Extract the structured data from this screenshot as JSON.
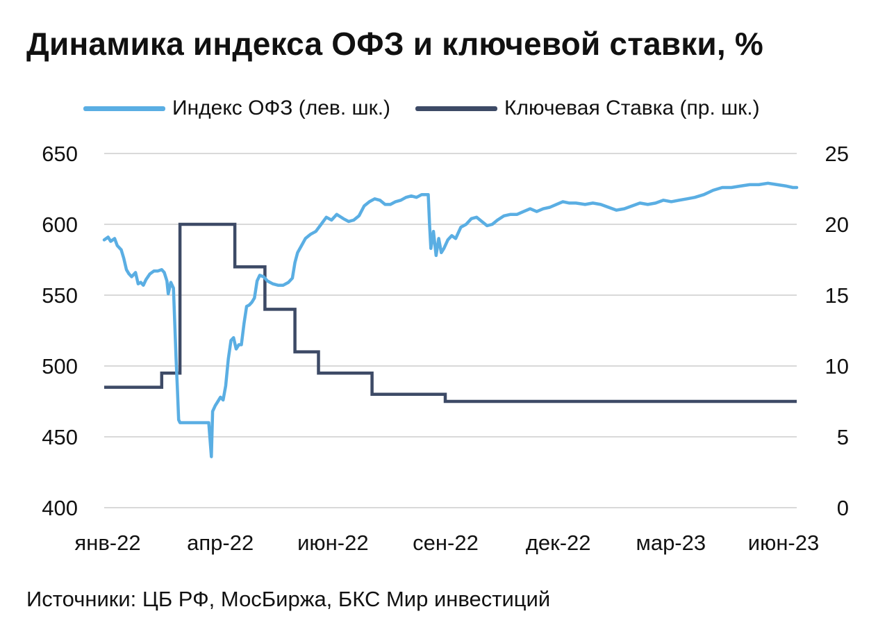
{
  "title": "Динамика индекса ОФЗ и ключевой ставки, %",
  "source": "Источники: ЦБ РФ, МосБиржа, БКС Мир инвестиций",
  "colors": {
    "ofz_index": "#5aaee3",
    "key_rate": "#3d4a66",
    "grid": "#d9d9d9",
    "text": "#111111"
  },
  "chart_data": {
    "type": "line",
    "title": "Динамика индекса ОФЗ и ключевой ставки, %",
    "x_ticks": [
      "янв-22",
      "апр-22",
      "июн-22",
      "сен-22",
      "дек-22",
      "мар-23",
      "июн-23"
    ],
    "x_range": [
      "2022-01-01",
      "2023-06-15"
    ],
    "y_left": {
      "ticks": [
        400,
        450,
        500,
        550,
        600,
        650
      ],
      "range": [
        400,
        650
      ]
    },
    "y_right": {
      "ticks": [
        0,
        5,
        10,
        15,
        20,
        25
      ],
      "range": [
        0,
        25
      ]
    },
    "grid": "horizontal",
    "legend_position": "top",
    "series": [
      {
        "name": "Индекс ОФЗ (лев. шк.)",
        "axis": "left",
        "color": "#5aaee3",
        "points": [
          [
            "2022-01-01",
            589
          ],
          [
            "2022-01-04",
            591
          ],
          [
            "2022-01-06",
            588
          ],
          [
            "2022-01-09",
            590
          ],
          [
            "2022-01-11",
            585
          ],
          [
            "2022-01-14",
            582
          ],
          [
            "2022-01-16",
            576
          ],
          [
            "2022-01-18",
            568
          ],
          [
            "2022-01-20",
            565
          ],
          [
            "2022-01-22",
            563
          ],
          [
            "2022-01-25",
            566
          ],
          [
            "2022-01-27",
            558
          ],
          [
            "2022-01-29",
            559
          ],
          [
            "2022-01-31",
            557
          ],
          [
            "2022-02-02",
            561
          ],
          [
            "2022-02-05",
            565
          ],
          [
            "2022-02-08",
            567
          ],
          [
            "2022-02-11",
            567
          ],
          [
            "2022-02-14",
            568
          ],
          [
            "2022-02-16",
            566
          ],
          [
            "2022-02-18",
            560
          ],
          [
            "2022-02-19",
            551
          ],
          [
            "2022-02-21",
            559
          ],
          [
            "2022-02-23",
            555
          ],
          [
            "2022-02-24",
            530
          ],
          [
            "2022-02-25",
            505
          ],
          [
            "2022-02-26",
            485
          ],
          [
            "2022-02-27",
            462
          ],
          [
            "2022-02-28",
            460
          ],
          [
            "2022-03-22",
            460
          ],
          [
            "2022-03-23",
            448
          ],
          [
            "2022-03-24",
            436
          ],
          [
            "2022-03-25",
            468
          ],
          [
            "2022-03-27",
            472
          ],
          [
            "2022-03-29",
            475
          ],
          [
            "2022-03-31",
            478
          ],
          [
            "2022-04-02",
            476
          ],
          [
            "2022-04-04",
            486
          ],
          [
            "2022-04-06",
            505
          ],
          [
            "2022-04-08",
            518
          ],
          [
            "2022-04-10",
            520
          ],
          [
            "2022-04-12",
            512
          ],
          [
            "2022-04-14",
            515
          ],
          [
            "2022-04-16",
            515
          ],
          [
            "2022-04-18",
            530
          ],
          [
            "2022-04-20",
            542
          ],
          [
            "2022-04-22",
            543
          ],
          [
            "2022-04-24",
            545
          ],
          [
            "2022-04-26",
            548
          ],
          [
            "2022-04-28",
            560
          ],
          [
            "2022-04-30",
            564
          ],
          [
            "2022-05-03",
            563
          ],
          [
            "2022-05-06",
            560
          ],
          [
            "2022-05-10",
            558
          ],
          [
            "2022-05-14",
            557
          ],
          [
            "2022-05-18",
            557
          ],
          [
            "2022-05-22",
            559
          ],
          [
            "2022-05-25",
            562
          ],
          [
            "2022-05-27",
            573
          ],
          [
            "2022-05-29",
            580
          ],
          [
            "2022-06-01",
            585
          ],
          [
            "2022-06-04",
            590
          ],
          [
            "2022-06-08",
            593
          ],
          [
            "2022-06-12",
            595
          ],
          [
            "2022-06-16",
            600
          ],
          [
            "2022-06-20",
            605
          ],
          [
            "2022-06-24",
            603
          ],
          [
            "2022-06-28",
            607
          ],
          [
            "2022-07-03",
            604
          ],
          [
            "2022-07-07",
            602
          ],
          [
            "2022-07-11",
            603
          ],
          [
            "2022-07-15",
            606
          ],
          [
            "2022-07-19",
            613
          ],
          [
            "2022-07-23",
            616
          ],
          [
            "2022-07-27",
            618
          ],
          [
            "2022-07-31",
            617
          ],
          [
            "2022-08-04",
            614
          ],
          [
            "2022-08-08",
            614
          ],
          [
            "2022-08-12",
            616
          ],
          [
            "2022-08-16",
            617
          ],
          [
            "2022-08-20",
            619
          ],
          [
            "2022-08-24",
            620
          ],
          [
            "2022-08-28",
            619
          ],
          [
            "2022-09-01",
            621
          ],
          [
            "2022-09-04",
            621
          ],
          [
            "2022-09-06",
            621
          ],
          [
            "2022-09-07",
            600
          ],
          [
            "2022-09-08",
            583
          ],
          [
            "2022-09-10",
            595
          ],
          [
            "2022-09-12",
            578
          ],
          [
            "2022-09-14",
            590
          ],
          [
            "2022-09-16",
            580
          ],
          [
            "2022-09-18",
            583
          ],
          [
            "2022-09-21",
            589
          ],
          [
            "2022-09-24",
            592
          ],
          [
            "2022-09-27",
            590
          ],
          [
            "2022-10-01",
            598
          ],
          [
            "2022-10-05",
            600
          ],
          [
            "2022-10-09",
            604
          ],
          [
            "2022-10-13",
            605
          ],
          [
            "2022-10-17",
            602
          ],
          [
            "2022-10-21",
            599
          ],
          [
            "2022-10-25",
            600
          ],
          [
            "2022-10-29",
            603
          ],
          [
            "2022-11-03",
            606
          ],
          [
            "2022-11-08",
            607
          ],
          [
            "2022-11-13",
            607
          ],
          [
            "2022-11-18",
            609
          ],
          [
            "2022-11-23",
            611
          ],
          [
            "2022-11-28",
            609
          ],
          [
            "2022-12-03",
            611
          ],
          [
            "2022-12-08",
            612
          ],
          [
            "2022-12-13",
            614
          ],
          [
            "2022-12-18",
            616
          ],
          [
            "2022-12-23",
            615
          ],
          [
            "2022-12-28",
            615
          ],
          [
            "2023-01-04",
            614
          ],
          [
            "2023-01-10",
            615
          ],
          [
            "2023-01-16",
            614
          ],
          [
            "2023-01-22",
            612
          ],
          [
            "2023-01-28",
            610
          ],
          [
            "2023-02-03",
            611
          ],
          [
            "2023-02-09",
            613
          ],
          [
            "2023-02-15",
            615
          ],
          [
            "2023-02-21",
            614
          ],
          [
            "2023-02-27",
            615
          ],
          [
            "2023-03-05",
            617
          ],
          [
            "2023-03-11",
            616
          ],
          [
            "2023-03-17",
            617
          ],
          [
            "2023-03-23",
            618
          ],
          [
            "2023-03-29",
            619
          ],
          [
            "2023-04-05",
            621
          ],
          [
            "2023-04-12",
            624
          ],
          [
            "2023-04-19",
            626
          ],
          [
            "2023-04-26",
            626
          ],
          [
            "2023-05-03",
            627
          ],
          [
            "2023-05-10",
            628
          ],
          [
            "2023-05-17",
            628
          ],
          [
            "2023-05-24",
            629
          ],
          [
            "2023-05-31",
            628
          ],
          [
            "2023-06-07",
            627
          ],
          [
            "2023-06-12",
            626
          ],
          [
            "2023-06-15",
            626
          ]
        ]
      },
      {
        "name": "Ключевая Ставка (пр. шк.)",
        "axis": "right",
        "color": "#3d4a66",
        "step": true,
        "points": [
          [
            "2022-01-01",
            8.5
          ],
          [
            "2022-02-14",
            9.5
          ],
          [
            "2022-02-28",
            20
          ],
          [
            "2022-04-11",
            17
          ],
          [
            "2022-05-04",
            14
          ],
          [
            "2022-05-27",
            11
          ],
          [
            "2022-06-14",
            9.5
          ],
          [
            "2022-07-25",
            8
          ],
          [
            "2022-09-19",
            7.5
          ],
          [
            "2023-06-15",
            7.5
          ]
        ]
      }
    ]
  }
}
